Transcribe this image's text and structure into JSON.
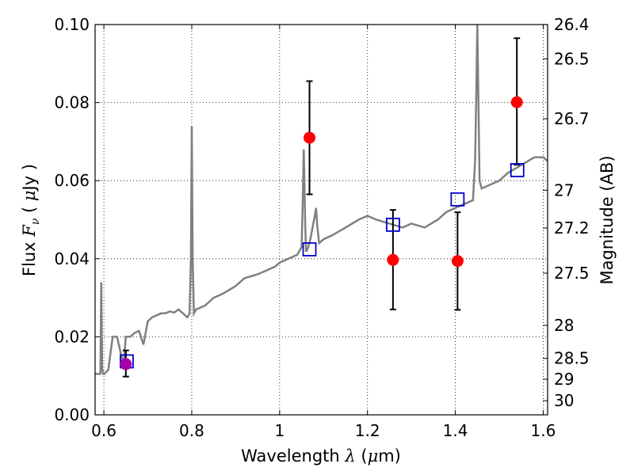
{
  "chart_data": {
    "type": "scatter",
    "title": "",
    "xlabel": "Wavelength  λ (μm)",
    "ylabel": "Flux  Fν  ( μJy )",
    "y2label": "Magnitude (AB)",
    "xlim": [
      0.58,
      1.61
    ],
    "ylim": [
      0.0,
      0.1
    ],
    "grid": true,
    "x_ticks": [
      0.6,
      0.8,
      1.0,
      1.2,
      1.4,
      1.6
    ],
    "x_tick_labels": [
      "0.6",
      "0.8",
      "1",
      "1.2",
      "1.4",
      "1.6"
    ],
    "y_ticks": [
      0.0,
      0.02,
      0.04,
      0.06,
      0.08,
      0.1
    ],
    "y_tick_labels": [
      "0.00",
      "0.02",
      "0.04",
      "0.06",
      "0.08",
      "0.10"
    ],
    "mag_ticks": [
      26.4,
      26.5,
      26.7,
      27,
      27.2,
      27.5,
      28,
      28.5,
      29,
      30
    ],
    "mag_tick_labels": [
      "26.4",
      "26.5",
      "26.7",
      "27",
      "27.2",
      "27.5",
      "28",
      "28.5",
      "29",
      "30"
    ],
    "colors": {
      "spectrum": "#808080",
      "observed": "#ff0000",
      "observed_first": "#aa00aa",
      "model": "#0000cc",
      "errorbar": "#000000"
    },
    "series": [
      {
        "kind": "spectrum",
        "x": [
          0.58,
          0.592,
          0.594,
          0.596,
          0.598,
          0.6,
          0.61,
          0.62,
          0.63,
          0.64,
          0.645,
          0.65,
          0.66,
          0.67,
          0.68,
          0.69,
          0.7,
          0.71,
          0.72,
          0.73,
          0.74,
          0.75,
          0.76,
          0.77,
          0.78,
          0.79,
          0.795,
          0.798,
          0.8,
          0.802,
          0.805,
          0.81,
          0.83,
          0.85,
          0.87,
          0.9,
          0.92,
          0.95,
          0.97,
          0.99,
          1.0,
          1.02,
          1.04,
          1.05,
          1.052,
          1.055,
          1.058,
          1.06,
          1.062,
          1.065,
          1.07,
          1.075,
          1.08,
          1.083,
          1.086,
          1.09,
          1.1,
          1.12,
          1.15,
          1.18,
          1.2,
          1.22,
          1.25,
          1.28,
          1.3,
          1.33,
          1.36,
          1.38,
          1.4,
          1.42,
          1.44,
          1.445,
          1.448,
          1.45,
          1.452,
          1.455,
          1.46,
          1.48,
          1.5,
          1.52,
          1.55,
          1.58,
          1.6,
          1.61
        ],
        "y": [
          0.0105,
          0.0105,
          0.034,
          0.012,
          0.0105,
          0.0104,
          0.0115,
          0.02,
          0.02,
          0.015,
          0.013,
          0.02,
          0.02,
          0.021,
          0.0215,
          0.018,
          0.024,
          0.025,
          0.0255,
          0.026,
          0.026,
          0.0265,
          0.0262,
          0.027,
          0.026,
          0.025,
          0.026,
          0.04,
          0.074,
          0.04,
          0.026,
          0.027,
          0.028,
          0.03,
          0.031,
          0.033,
          0.035,
          0.036,
          0.037,
          0.038,
          0.039,
          0.04,
          0.041,
          0.043,
          0.052,
          0.068,
          0.05,
          0.042,
          0.042,
          0.043,
          0.045,
          0.048,
          0.051,
          0.053,
          0.048,
          0.044,
          0.045,
          0.046,
          0.048,
          0.05,
          0.051,
          0.05,
          0.049,
          0.048,
          0.049,
          0.048,
          0.05,
          0.052,
          0.053,
          0.054,
          0.055,
          0.065,
          0.085,
          0.1,
          0.085,
          0.06,
          0.058,
          0.059,
          0.06,
          0.062,
          0.064,
          0.066,
          0.066,
          0.065
        ]
      },
      {
        "kind": "observed",
        "x": [
          0.65,
          1.068,
          1.258,
          1.405,
          1.54
        ],
        "y": [
          0.013,
          0.071,
          0.0397,
          0.0394,
          0.0801
        ],
        "yerr_low": [
          0.0032,
          0.0145,
          0.0127,
          0.0125,
          0.016
        ],
        "yerr_high": [
          0.0035,
          0.0145,
          0.0128,
          0.0125,
          0.0164
        ]
      },
      {
        "kind": "model",
        "x": [
          0.652,
          1.068,
          1.258,
          1.405,
          1.541
        ],
        "y": [
          0.0137,
          0.0424,
          0.0487,
          0.0552,
          0.0627
        ]
      }
    ]
  }
}
